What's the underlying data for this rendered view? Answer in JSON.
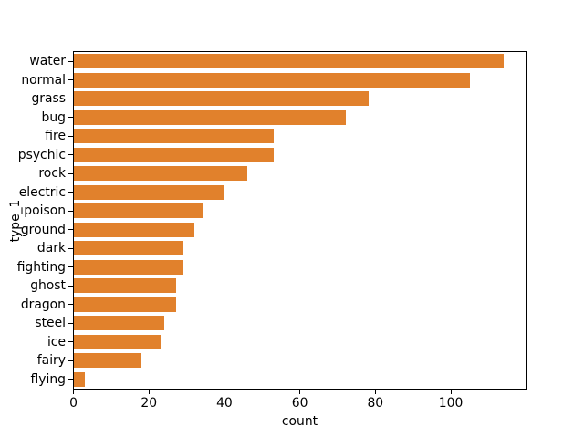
{
  "chart_data": {
    "type": "bar",
    "orientation": "horizontal",
    "categories": [
      "water",
      "normal",
      "grass",
      "bug",
      "fire",
      "psychic",
      "rock",
      "electric",
      "poison",
      "ground",
      "dark",
      "fighting",
      "ghost",
      "dragon",
      "steel",
      "ice",
      "fairy",
      "flying"
    ],
    "values": [
      114,
      105,
      78,
      72,
      53,
      53,
      46,
      40,
      34,
      32,
      29,
      29,
      27,
      27,
      24,
      23,
      18,
      3
    ],
    "xlabel": "count",
    "ylabel": "type_1",
    "x_ticks": [
      0,
      20,
      40,
      60,
      80,
      100
    ],
    "xlim": [
      0,
      119.7
    ],
    "bar_color": "#e1812c",
    "axis_color": "#000000",
    "background_color": "#ffffff",
    "grid": false,
    "legend": false
  }
}
